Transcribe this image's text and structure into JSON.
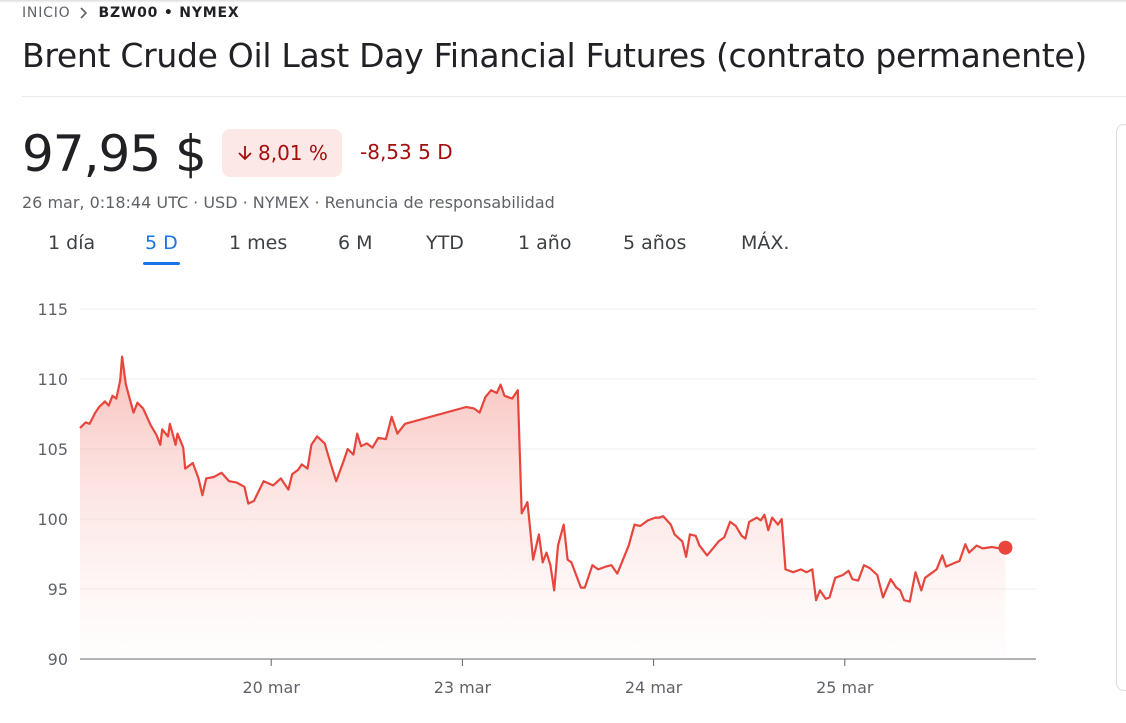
{
  "header": {
    "breadcrumb": [
      "INICIO",
      "BZW00 • NYMEX"
    ],
    "title": "Brent Crude Oil Last Day Financial Futures (contrato permanente)",
    "price": "97,95 $",
    "change_percent": "8,01 %",
    "change_period": "-8,53 5 D",
    "info": "26 mar, 0:18:44 UTC · USD · NYMEX · Renuncia de responsabilidad"
  },
  "tabs": [
    "1 día",
    "5 D",
    "1 mes",
    "6 M",
    "YTD",
    "1 año",
    "5 años",
    "MÁX."
  ],
  "selected_tab": 1,
  "chart_data": {
    "type": "line",
    "color": "#e8453c",
    "grid": true,
    "xlim": [
      0,
      5
    ],
    "xticks": [
      {
        "value": 1,
        "label": "20 mar"
      },
      {
        "value": 2,
        "label": "23 mar"
      },
      {
        "value": 3,
        "label": "24 mar"
      },
      {
        "value": 4,
        "label": "25 mar"
      }
    ],
    "ylim": [
      90,
      115
    ],
    "yticks": [
      90,
      95,
      100,
      105,
      110,
      115
    ],
    "x": [
      0,
      0.03,
      0.05,
      0.08,
      0.1,
      0.13,
      0.15,
      0.17,
      0.19,
      0.21,
      0.22,
      0.24,
      0.26,
      0.28,
      0.3,
      0.33,
      0.37,
      0.4,
      0.42,
      0.43,
      0.46,
      0.47,
      0.5,
      0.51,
      0.54,
      0.55,
      0.59,
      0.62,
      0.64,
      0.66,
      0.7,
      0.74,
      0.78,
      0.82,
      0.86,
      0.88,
      0.91,
      0.96,
      1.01,
      1.05,
      1.09,
      1.11,
      1.14,
      1.16,
      1.19,
      1.21,
      1.24,
      1.28,
      1.31,
      1.34,
      1.38,
      1.4,
      1.43,
      1.45,
      1.47,
      1.5,
      1.53,
      1.56,
      1.6,
      1.63,
      1.66,
      1.7,
      2.02,
      2.06,
      2.09,
      2.12,
      2.15,
      2.18,
      2.2,
      2.22,
      2.26,
      2.29,
      2.31,
      2.34,
      2.35,
      2.37,
      2.4,
      2.42,
      2.44,
      2.46,
      2.48,
      2.5,
      2.53,
      2.55,
      2.57,
      2.62,
      2.64,
      2.68,
      2.71,
      2.75,
      2.78,
      2.81,
      2.84,
      2.87,
      2.9,
      2.93,
      2.97,
      3.01,
      3.03,
      3.05,
      3.09,
      3.11,
      3.15,
      3.17,
      3.19,
      3.22,
      3.24,
      3.28,
      3.31,
      3.34,
      3.37,
      3.4,
      3.43,
      3.46,
      3.48,
      3.5,
      3.54,
      3.56,
      3.58,
      3.6,
      3.62,
      3.65,
      3.67,
      3.69,
      3.73,
      3.77,
      3.8,
      3.83,
      3.85,
      3.87,
      3.9,
      3.92,
      3.95,
      3.99,
      4.02,
      4.04,
      4.07,
      4.1,
      4.13,
      4.17,
      4.2,
      4.24,
      4.27,
      4.29,
      4.31,
      4.34,
      4.37,
      4.4,
      4.42,
      4.46,
      4.48,
      4.51,
      4.53,
      4.58,
      4.6,
      4.63,
      4.65,
      4.69,
      4.72,
      4.77,
      4.81,
      4.84
    ],
    "values": [
      106.5,
      106.9,
      106.8,
      107.6,
      108.0,
      108.4,
      108.1,
      108.8,
      108.6,
      109.9,
      111.6,
      109.6,
      108.6,
      107.6,
      108.3,
      107.9,
      106.7,
      106.0,
      105.3,
      106.4,
      105.9,
      106.8,
      105.3,
      106.1,
      105.1,
      103.6,
      104.0,
      102.9,
      101.7,
      102.9,
      103.0,
      103.3,
      102.7,
      102.6,
      102.3,
      101.1,
      101.3,
      102.7,
      102.4,
      102.9,
      102.1,
      103.2,
      103.5,
      103.9,
      103.6,
      105.3,
      105.9,
      105.4,
      104.0,
      102.7,
      104.2,
      105.0,
      104.6,
      106.1,
      105.2,
      105.4,
      105.1,
      105.8,
      105.7,
      107.3,
      106.1,
      106.8,
      108.0,
      107.9,
      107.6,
      108.7,
      109.2,
      109.0,
      109.6,
      108.8,
      108.6,
      109.2,
      100.4,
      101.2,
      99.9,
      97.1,
      98.9,
      96.9,
      97.6,
      96.7,
      94.9,
      98.1,
      99.6,
      97.1,
      96.9,
      95.1,
      95.1,
      96.7,
      96.4,
      96.6,
      96.7,
      96.1,
      97.1,
      98.1,
      99.6,
      99.5,
      99.9,
      100.1,
      100.1,
      100.2,
      99.6,
      98.9,
      98.4,
      97.3,
      98.9,
      98.8,
      98.1,
      97.4,
      97.9,
      98.4,
      98.7,
      99.8,
      99.5,
      98.8,
      98.6,
      99.8,
      100.1,
      99.9,
      100.3,
      99.2,
      100.1,
      99.6,
      100.0,
      96.4,
      96.2,
      96.4,
      96.2,
      96.4,
      94.2,
      94.9,
      94.3,
      94.4,
      95.8,
      96.0,
      96.3,
      95.7,
      95.6,
      96.7,
      96.5,
      96.0,
      94.4,
      95.7,
      95.1,
      94.9,
      94.2,
      94.1,
      96.2,
      94.9,
      95.8,
      96.2,
      96.4,
      97.4,
      96.6,
      96.9,
      97.0,
      98.2,
      97.6,
      98.1,
      97.9,
      98.0,
      97.9,
      97.95
    ]
  }
}
